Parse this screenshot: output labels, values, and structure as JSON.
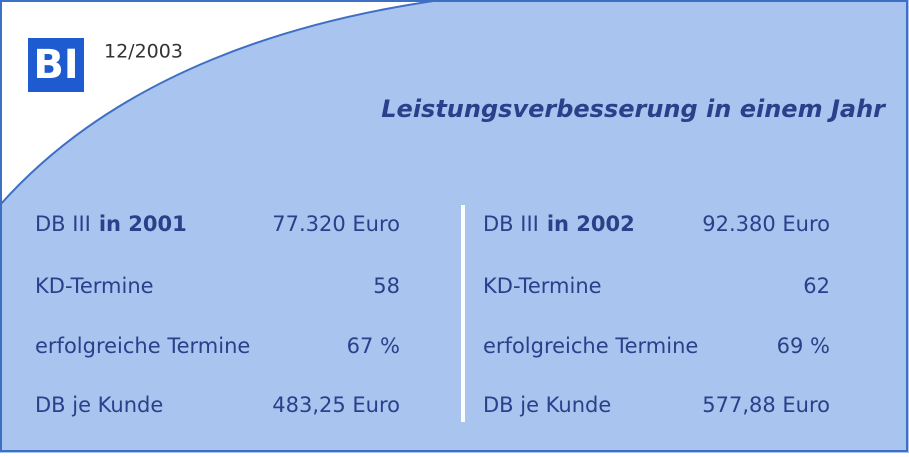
{
  "logo": "BI",
  "date": "12/2003",
  "title": "Leistungsverbesserung in einem Jahr",
  "columns": [
    {
      "rows": [
        {
          "label": "DB III",
          "label_bold": "in 2001",
          "value": "77.320 Euro"
        },
        {
          "label": "KD-Termine",
          "value": "58"
        },
        {
          "label": "erfolgreiche Termine",
          "value": "67 %"
        },
        {
          "label": "DB je Kunde",
          "value": "483,25 Euro"
        }
      ]
    },
    {
      "rows": [
        {
          "label": "DB III",
          "label_bold": "in 2002",
          "value": "92.380 Euro"
        },
        {
          "label": "KD-Termine",
          "value": "62"
        },
        {
          "label": "erfolgreiche Termine",
          "value": "69 %"
        },
        {
          "label": "DB je Kunde",
          "value": "577,88 Euro"
        }
      ]
    }
  ]
}
